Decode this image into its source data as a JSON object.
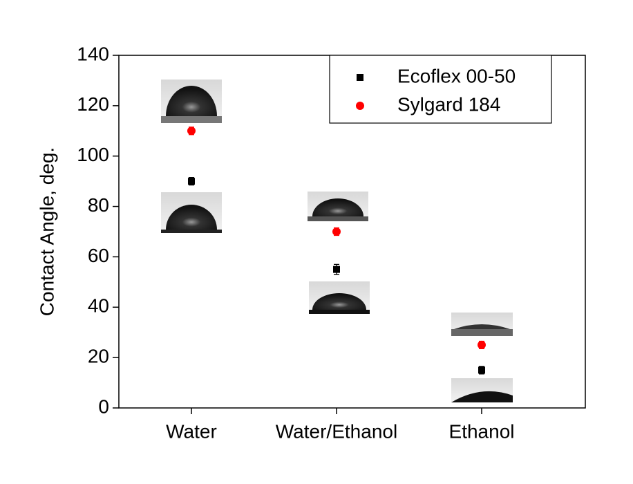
{
  "chart_data": {
    "type": "scatter",
    "y_label": "Contact Angle, deg.",
    "categories": [
      "Water",
      "Water/Ethanol",
      "Ethanol"
    ],
    "series": [
      {
        "name": "Ecoflex 00-50",
        "color": "#000000",
        "marker": "square",
        "values": [
          90,
          55,
          15
        ],
        "errors": [
          1.5,
          2,
          1.5
        ]
      },
      {
        "name": "Sylgard 184",
        "color": "#ff0000",
        "marker": "circle",
        "values": [
          110,
          70,
          25
        ],
        "errors": [
          1.5,
          1.5,
          1.5
        ]
      }
    ],
    "ylim": [
      0,
      140
    ],
    "yticks": [
      0,
      20,
      40,
      60,
      80,
      100,
      120,
      140
    ],
    "legend": "upper right"
  }
}
